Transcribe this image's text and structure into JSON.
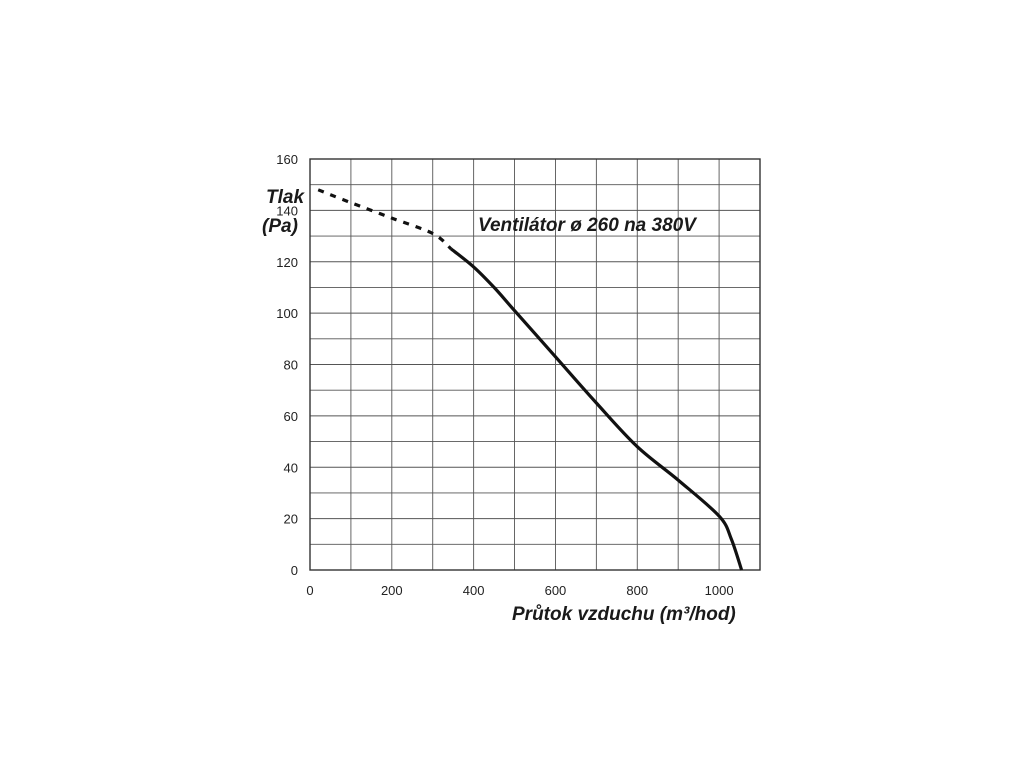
{
  "chart_data": {
    "type": "line",
    "title": "Ventilátor ø 260 na 380V",
    "ylabel_line1": "Tlak",
    "ylabel_line2": "(Pa)",
    "xlabel": "Průtok vzduchu (m³/hod)",
    "xlim": [
      0,
      1100
    ],
    "ylim": [
      0,
      160
    ],
    "x_ticks": [
      0,
      200,
      400,
      600,
      800,
      1000
    ],
    "y_ticks": [
      0,
      20,
      40,
      60,
      80,
      100,
      120,
      140,
      160
    ],
    "grid": true,
    "colors": {
      "line": "#111111",
      "grid": "#555555",
      "text": "#222222"
    },
    "series": [
      {
        "style": "dashed",
        "x": [
          20,
          100,
          200,
          300,
          345
        ],
        "y": [
          148,
          143,
          137,
          131,
          125
        ]
      },
      {
        "style": "solid",
        "x": [
          345,
          400,
          450,
          500,
          600,
          700,
          800,
          900,
          1000,
          1030,
          1055
        ],
        "y": [
          125,
          118,
          110,
          101,
          83,
          65,
          48,
          35,
          21,
          12,
          0
        ]
      }
    ]
  }
}
